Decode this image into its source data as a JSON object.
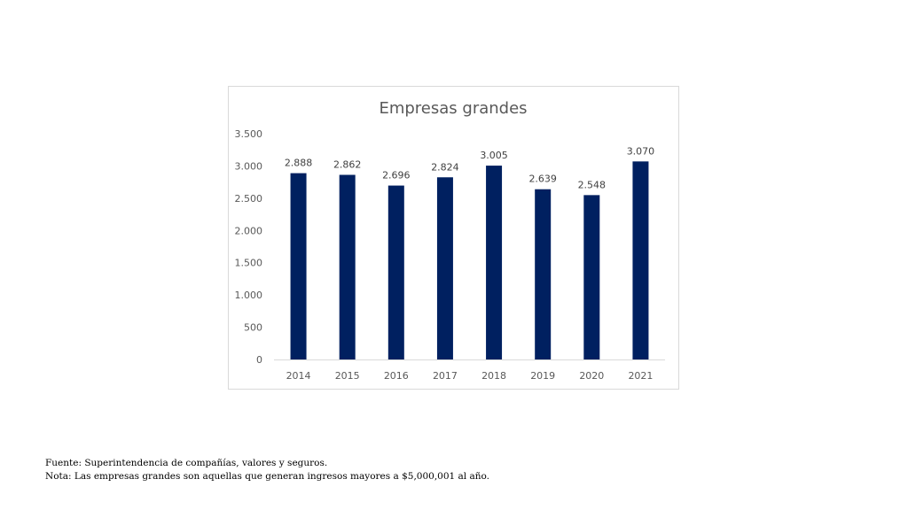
{
  "chart_data": {
    "type": "bar",
    "title": "Empresas grandes",
    "categories": [
      "2014",
      "2015",
      "2016",
      "2017",
      "2018",
      "2019",
      "2020",
      "2021"
    ],
    "values": [
      2888,
      2862,
      2696,
      2824,
      3005,
      2639,
      2548,
      3070
    ],
    "value_labels": [
      "2.888",
      "2.862",
      "2.696",
      "2.824",
      "3.005",
      "2.639",
      "2.548",
      "3.070"
    ],
    "ylim": [
      0,
      3500
    ],
    "yticks": [
      0,
      500,
      1000,
      1500,
      2000,
      2500,
      3000,
      3500
    ],
    "ytick_labels": [
      "0",
      "500",
      "1.000",
      "1.500",
      "2.000",
      "2.500",
      "3.000",
      "3.500"
    ],
    "grid": false,
    "legend": "none",
    "bar_color": "#002060",
    "xlabel": "",
    "ylabel": ""
  },
  "footnotes": {
    "source": "Fuente: Superintendencia de compañías, valores y seguros.",
    "note": "Nota: Las empresas grandes son aquellas que generan ingresos mayores a $5,000,001 al año."
  }
}
